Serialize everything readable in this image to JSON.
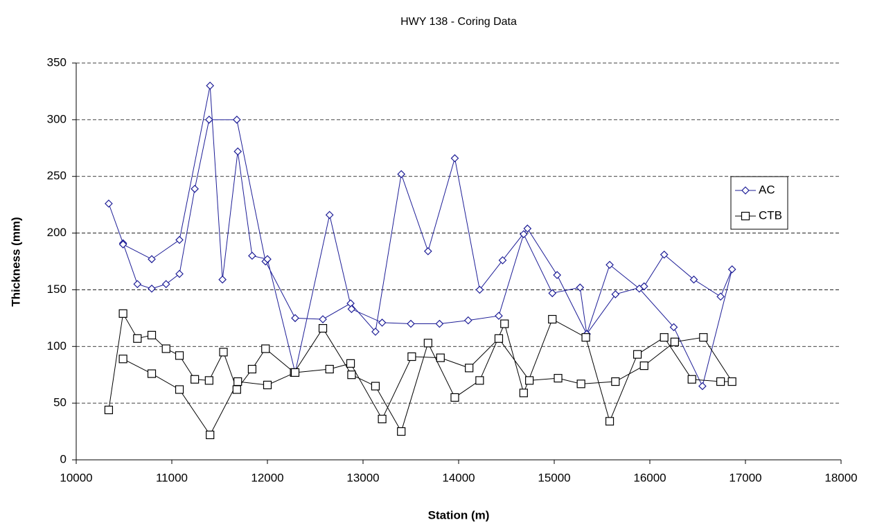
{
  "chart_data": {
    "type": "line",
    "title": "HWY 138 - Coring Data",
    "x_label": "Station (m)",
    "y_label": "Thickness (mm)",
    "xlim": [
      10000,
      18000
    ],
    "xticks": [
      10000,
      11000,
      12000,
      13000,
      14000,
      15000,
      16000,
      17000,
      18000
    ],
    "ylim": [
      0,
      350
    ],
    "yticks": [
      0,
      50,
      100,
      150,
      200,
      250,
      300,
      350
    ],
    "grid": true,
    "legend": "right",
    "series": [
      {
        "name": "AC",
        "color": "#1c1c96",
        "marker": "diamond",
        "x": [
          10340,
          10490,
          10640,
          10790,
          10940,
          11080,
          11240,
          11390,
          11680,
          11980,
          12290,
          12580,
          12870,
          13130,
          13400,
          13680,
          13960,
          14220,
          14460,
          14720,
          15030,
          15340,
          15580,
          15890,
          16250,
          16550,
          16860,
          16740,
          16460,
          16150,
          15940,
          15640,
          15340,
          15270,
          14980,
          14680,
          14420,
          14100,
          13800,
          13500,
          13200,
          12880,
          12650,
          12290,
          12000,
          11840,
          11690,
          11530,
          11400,
          11080,
          10790,
          10490
        ],
        "values": [
          226,
          191,
          155,
          151,
          155,
          164,
          239,
          300,
          300,
          175,
          125,
          124,
          138,
          113,
          252,
          184,
          266,
          150,
          176,
          204,
          163,
          111,
          172,
          151,
          117,
          65,
          168,
          144,
          159,
          181,
          153,
          146,
          111,
          152,
          147,
          199,
          127,
          123,
          120,
          120,
          121,
          133,
          216,
          77,
          177,
          180,
          272,
          159,
          330,
          194,
          177,
          190
        ]
      },
      {
        "name": "CTB",
        "color": "#000000",
        "marker": "square",
        "x": [
          10340,
          10490,
          10640,
          10790,
          10940,
          11080,
          11240,
          11390,
          11540,
          11680,
          11840,
          11980,
          12280,
          12580,
          12880,
          13130,
          13400,
          13680,
          13960,
          14220,
          14480,
          14680,
          14980,
          15330,
          15580,
          15870,
          16150,
          16440,
          16740,
          16860,
          16560,
          16260,
          15940,
          15640,
          15280,
          15040,
          14740,
          14420,
          14110,
          13810,
          13510,
          13200,
          12870,
          12650,
          12290,
          12000,
          11690,
          11400,
          11080,
          10790,
          10490
        ],
        "values": [
          44,
          129,
          107,
          110,
          98,
          92,
          71,
          70,
          95,
          62,
          80,
          98,
          77,
          116,
          75,
          65,
          25,
          103,
          55,
          70,
          120,
          59,
          124,
          108,
          34,
          93,
          108,
          71,
          69,
          69,
          108,
          104,
          83,
          69,
          67,
          72,
          70,
          107,
          81,
          90,
          91,
          36,
          85,
          80,
          77,
          66,
          69,
          22,
          62,
          76,
          89
        ]
      }
    ]
  }
}
